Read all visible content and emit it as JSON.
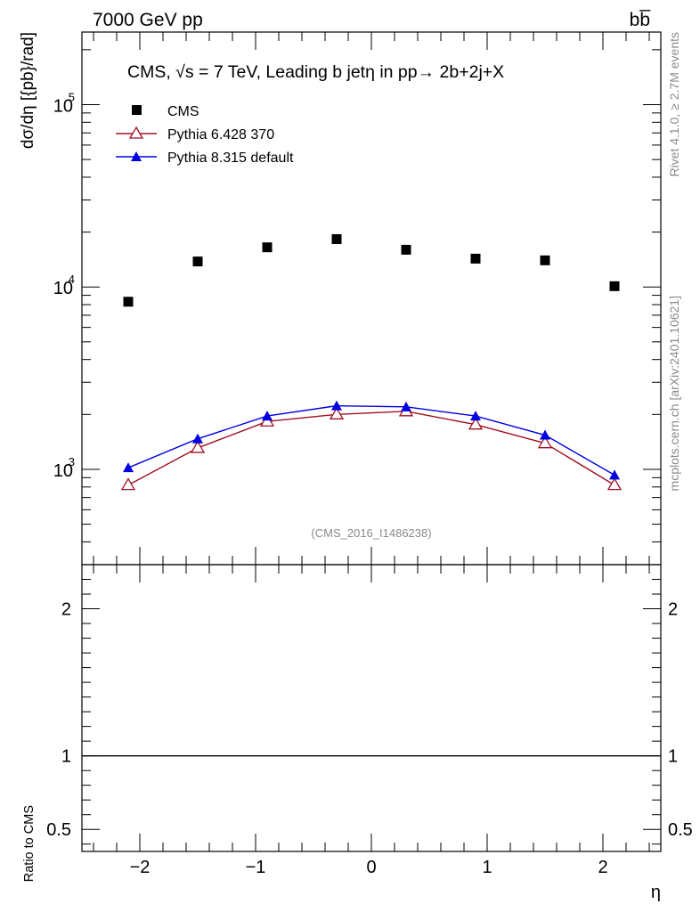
{
  "header": {
    "left": "7000 GeV pp",
    "right": "bb̅"
  },
  "side_labels": {
    "rivet": "Rivet 4.1.0, ≥ 2.7M events",
    "mcplots": "mcplots.cern.ch [arXiv:2401.10621]"
  },
  "chart_data": {
    "type": "scatter",
    "title": "CMS, √s = 7 TeV, Leading b jetη in pp→  2b+2j+X",
    "watermark": "(CMS_2016_I1486238)",
    "xlabel": "η",
    "ylabel": "dσ/dη [{pb}/rad]",
    "ratio_ylabel": "Ratio to CMS",
    "xlim": [
      -2.5,
      2.5
    ],
    "ylim": [
      300,
      250000
    ],
    "yscale": "log",
    "ratio_ylim": [
      0.35,
      2.3
    ],
    "x_ticks": [
      -2,
      -1,
      0,
      1,
      2
    ],
    "x_tick_labels": [
      "−2",
      "−1",
      "0",
      "1",
      "2"
    ],
    "y_ticks": [
      1000,
      10000,
      100000
    ],
    "y_tick_labels": [
      "10",
      "10",
      "10"
    ],
    "y_tick_exps": [
      "3",
      "4",
      "5"
    ],
    "ratio_ticks": [
      0.5,
      1,
      2
    ],
    "ratio_tick_labels": [
      "0.5",
      "1",
      "2"
    ],
    "x": [
      -2.1,
      -1.5,
      -0.9,
      -0.3,
      0.3,
      0.9,
      1.5,
      2.1
    ],
    "series": [
      {
        "name": "CMS",
        "color": "#000000",
        "marker": "square",
        "values": [
          8300,
          13800,
          16500,
          18300,
          16000,
          14300,
          14000,
          10100
        ]
      },
      {
        "name": "Pythia 6.428 370",
        "color": "#a01020",
        "marker": "triangle-open",
        "values": [
          820,
          1310,
          1830,
          2000,
          2080,
          1760,
          1390,
          820
        ]
      },
      {
        "name": "Pythia 8.315 default",
        "color": "#0000e0",
        "marker": "triangle-filled",
        "values": [
          1020,
          1470,
          1960,
          2230,
          2200,
          1960,
          1540,
          930
        ]
      }
    ],
    "ratio_reference": 1
  }
}
